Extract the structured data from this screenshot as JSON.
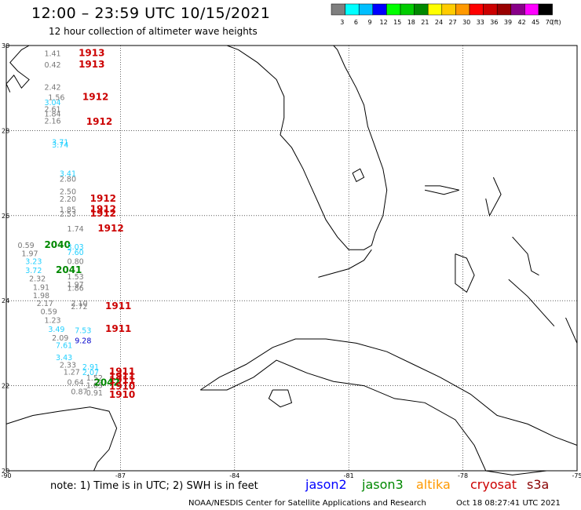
{
  "header": {
    "title": "12:00 – 23:59 UTC 10/15/2021",
    "subtitle": "12 hour collection of altimeter wave heights"
  },
  "legend": {
    "unit": "(ft)",
    "bins": [
      {
        "label": "3",
        "color": "#7f7f7f"
      },
      {
        "label": "6",
        "color": "#00ffff"
      },
      {
        "label": "9",
        "color": "#00bfff"
      },
      {
        "label": "12",
        "color": "#0000ff"
      },
      {
        "label": "15",
        "color": "#00ff00"
      },
      {
        "label": "18",
        "color": "#00cc00"
      },
      {
        "label": "21",
        "color": "#008800"
      },
      {
        "label": "24",
        "color": "#ffff00"
      },
      {
        "label": "27",
        "color": "#ffcc00"
      },
      {
        "label": "30",
        "color": "#ff9900"
      },
      {
        "label": "33",
        "color": "#ff0000"
      },
      {
        "label": "36",
        "color": "#cc0000"
      },
      {
        "label": "39",
        "color": "#990000"
      },
      {
        "label": "42",
        "color": "#880088"
      },
      {
        "label": "45",
        "color": "#ff00ff"
      },
      {
        "label": "70",
        "color": "#000000"
      }
    ]
  },
  "axes": {
    "lat_labels": [
      "30",
      "28",
      "26",
      "24",
      "22",
      "20"
    ],
    "lon_labels": [
      "-90",
      "-87",
      "-84",
      "-81",
      "-78",
      "-75"
    ]
  },
  "map_data": {
    "lon_range": [
      -90,
      -75
    ],
    "lat_range": [
      20,
      30
    ],
    "coastlines": {
      "gulf_coast": [
        [
          -89.4,
          30.0
        ],
        [
          -89.6,
          29.9
        ],
        [
          -89.9,
          29.6
        ],
        [
          -89.7,
          29.4
        ],
        [
          -89.4,
          29.2
        ],
        [
          -89.6,
          29.0
        ],
        [
          -89.8,
          29.3
        ],
        [
          -90.0,
          29.1
        ],
        [
          -89.9,
          28.9
        ]
      ],
      "florida": [
        [
          -84.9,
          30.0
        ],
        [
          -84.2,
          30.0
        ],
        [
          -83.9,
          29.9
        ],
        [
          -83.4,
          29.6
        ],
        [
          -82.9,
          29.2
        ],
        [
          -82.7,
          28.8
        ],
        [
          -82.7,
          28.3
        ],
        [
          -82.8,
          27.9
        ],
        [
          -82.5,
          27.6
        ],
        [
          -82.2,
          27.1
        ],
        [
          -82.0,
          26.7
        ],
        [
          -81.8,
          26.3
        ],
        [
          -81.6,
          25.9
        ],
        [
          -81.3,
          25.5
        ],
        [
          -81.0,
          25.2
        ],
        [
          -80.6,
          25.2
        ],
        [
          -80.4,
          25.3
        ],
        [
          -80.3,
          25.6
        ],
        [
          -80.1,
          26.0
        ],
        [
          -80.0,
          26.6
        ],
        [
          -80.1,
          27.1
        ],
        [
          -80.3,
          27.6
        ],
        [
          -80.5,
          28.1
        ],
        [
          -80.6,
          28.6
        ],
        [
          -80.8,
          29.0
        ],
        [
          -81.1,
          29.5
        ],
        [
          -81.3,
          29.9
        ],
        [
          -81.4,
          30.0
        ]
      ],
      "lake_okeechobee": [
        [
          -80.9,
          27.0
        ],
        [
          -80.7,
          27.1
        ],
        [
          -80.6,
          26.9
        ],
        [
          -80.8,
          26.8
        ],
        [
          -80.9,
          27.0
        ]
      ],
      "keys": [
        [
          -81.8,
          24.55
        ],
        [
          -81.4,
          24.65
        ],
        [
          -81.0,
          24.75
        ],
        [
          -80.6,
          24.95
        ],
        [
          -80.4,
          25.2
        ]
      ],
      "cuba": [
        [
          -84.9,
          21.9
        ],
        [
          -84.4,
          22.2
        ],
        [
          -83.7,
          22.5
        ],
        [
          -83.0,
          22.9
        ],
        [
          -82.4,
          23.1
        ],
        [
          -81.6,
          23.1
        ],
        [
          -80.8,
          23.0
        ],
        [
          -80.0,
          22.8
        ],
        [
          -79.3,
          22.5
        ],
        [
          -78.6,
          22.2
        ],
        [
          -77.8,
          21.8
        ],
        [
          -77.1,
          21.3
        ],
        [
          -76.3,
          21.1
        ],
        [
          -75.6,
          20.8
        ],
        [
          -75.0,
          20.6
        ],
        [
          -75.0,
          20.0
        ],
        [
          -75.8,
          20.0
        ],
        [
          -76.7,
          19.9
        ],
        [
          -77.4,
          20.0
        ],
        [
          -77.7,
          20.6
        ],
        [
          -78.2,
          21.2
        ],
        [
          -79.0,
          21.6
        ],
        [
          -79.8,
          21.7
        ],
        [
          -80.6,
          22.0
        ],
        [
          -81.4,
          22.1
        ],
        [
          -82.1,
          22.3
        ],
        [
          -82.9,
          22.6
        ],
        [
          -83.5,
          22.2
        ],
        [
          -84.2,
          21.9
        ],
        [
          -84.9,
          21.9
        ]
      ],
      "isla_juventud": [
        [
          -83.0,
          21.9
        ],
        [
          -82.6,
          21.9
        ],
        [
          -82.5,
          21.6
        ],
        [
          -82.8,
          21.5
        ],
        [
          -83.1,
          21.7
        ],
        [
          -83.0,
          21.9
        ]
      ],
      "yucatan": [
        [
          -90.0,
          21.1
        ],
        [
          -89.3,
          21.3
        ],
        [
          -88.6,
          21.4
        ],
        [
          -87.8,
          21.5
        ],
        [
          -87.3,
          21.4
        ],
        [
          -87.1,
          21.0
        ],
        [
          -87.3,
          20.5
        ],
        [
          -87.6,
          20.2
        ],
        [
          -87.7,
          20.0
        ]
      ],
      "andros": [
        [
          -78.2,
          25.1
        ],
        [
          -77.9,
          25.0
        ],
        [
          -77.7,
          24.6
        ],
        [
          -77.9,
          24.2
        ],
        [
          -78.2,
          24.4
        ],
        [
          -78.2,
          25.1
        ]
      ],
      "grand_bahama": [
        [
          -79.0,
          26.7
        ],
        [
          -78.6,
          26.7
        ],
        [
          -78.1,
          26.6
        ],
        [
          -78.5,
          26.5
        ],
        [
          -79.0,
          26.6
        ]
      ],
      "abaco": [
        [
          -77.2,
          26.9
        ],
        [
          -77.0,
          26.5
        ],
        [
          -77.3,
          26.0
        ],
        [
          -77.4,
          26.4
        ]
      ],
      "eleuthera": [
        [
          -76.7,
          25.5
        ],
        [
          -76.3,
          25.1
        ],
        [
          -76.2,
          24.7
        ],
        [
          -76.0,
          24.6
        ]
      ],
      "exuma": [
        [
          -76.8,
          24.5
        ],
        [
          -76.3,
          24.1
        ],
        [
          -75.8,
          23.6
        ],
        [
          -75.6,
          23.4
        ]
      ],
      "long_island": [
        [
          -75.3,
          23.6
        ],
        [
          -75.1,
          23.2
        ],
        [
          -75.0,
          23.0
        ]
      ]
    }
  },
  "observations": [
    {
      "lon": -89.0,
      "lat": 29.75,
      "text": "1.41",
      "mission": "altika"
    },
    {
      "lon": -89.0,
      "lat": 29.48,
      "text": "0.42",
      "mission": "altika"
    },
    {
      "lon": -88.1,
      "lat": 29.75,
      "text": "1913",
      "mission": "cryosat"
    },
    {
      "lon": -88.1,
      "lat": 29.48,
      "text": "1913",
      "mission": "cryosat"
    },
    {
      "lon": -89.0,
      "lat": 28.96,
      "text": "2.42",
      "mission": "altika"
    },
    {
      "lon": -88.9,
      "lat": 28.72,
      "text": "1.56",
      "mission": "altika"
    },
    {
      "lon": -89.0,
      "lat": 28.6,
      "text": "3.04",
      "mission": "jason3"
    },
    {
      "lon": -89.0,
      "lat": 28.44,
      "text": "2.61",
      "mission": "altika"
    },
    {
      "lon": -89.0,
      "lat": 28.33,
      "text": "1.84",
      "mission": "altika"
    },
    {
      "lon": -89.0,
      "lat": 28.16,
      "text": "2.16",
      "mission": "altika"
    },
    {
      "lon": -88.0,
      "lat": 28.72,
      "text": "1912",
      "mission": "cryosat"
    },
    {
      "lon": -87.9,
      "lat": 28.14,
      "text": "1912",
      "mission": "cryosat"
    },
    {
      "lon": -88.8,
      "lat": 27.67,
      "text": "3.71",
      "mission": "jason3"
    },
    {
      "lon": -88.8,
      "lat": 27.6,
      "text": "3.74",
      "mission": "jason3"
    },
    {
      "lon": -88.6,
      "lat": 26.93,
      "text": "3.41",
      "mission": "jason3"
    },
    {
      "lon": -88.6,
      "lat": 26.8,
      "text": "2.80",
      "mission": "altika"
    },
    {
      "lon": -88.6,
      "lat": 26.5,
      "text": "2.50",
      "mission": "altika"
    },
    {
      "lon": -88.6,
      "lat": 26.33,
      "text": "2.20",
      "mission": "altika"
    },
    {
      "lon": -88.6,
      "lat": 26.08,
      "text": "1.85",
      "mission": "altika"
    },
    {
      "lon": -88.6,
      "lat": 25.98,
      "text": "2.53",
      "mission": "altika"
    },
    {
      "lon": -87.8,
      "lat": 26.33,
      "text": "1912",
      "mission": "cryosat"
    },
    {
      "lon": -87.8,
      "lat": 26.08,
      "text": "1912",
      "mission": "cryosat"
    },
    {
      "lon": -87.8,
      "lat": 25.98,
      "text": "1912",
      "mission": "cryosat"
    },
    {
      "lon": -88.4,
      "lat": 25.63,
      "text": "1.74",
      "mission": "altika"
    },
    {
      "lon": -87.6,
      "lat": 25.63,
      "text": "1912",
      "mission": "cryosat"
    },
    {
      "lon": -89.7,
      "lat": 25.24,
      "text": "0.59",
      "mission": "altika"
    },
    {
      "lon": -89.0,
      "lat": 25.24,
      "text": "2040",
      "mission": "jason3_ops"
    },
    {
      "lon": -88.4,
      "lat": 25.2,
      "text": "3.03",
      "mission": "jason3"
    },
    {
      "lon": -89.6,
      "lat": 25.05,
      "text": "1.97",
      "mission": "altika"
    },
    {
      "lon": -88.4,
      "lat": 25.07,
      "text": "7.60",
      "mission": "jason3"
    },
    {
      "lon": -89.5,
      "lat": 24.86,
      "text": "3.23",
      "mission": "jason3"
    },
    {
      "lon": -88.4,
      "lat": 24.86,
      "text": "0.80",
      "mission": "altika"
    },
    {
      "lon": -89.5,
      "lat": 24.65,
      "text": "3.72",
      "mission": "jason3"
    },
    {
      "lon": -88.7,
      "lat": 24.65,
      "text": "2041",
      "mission": "jason3_ops"
    },
    {
      "lon": -89.4,
      "lat": 24.46,
      "text": "2.32",
      "mission": "altika"
    },
    {
      "lon": -88.4,
      "lat": 24.5,
      "text": "1.53",
      "mission": "altika"
    },
    {
      "lon": -89.3,
      "lat": 24.25,
      "text": "1.91",
      "mission": "altika"
    },
    {
      "lon": -88.4,
      "lat": 24.32,
      "text": "1.97",
      "mission": "altika"
    },
    {
      "lon": -88.4,
      "lat": 24.23,
      "text": "1.86",
      "mission": "altika"
    },
    {
      "lon": -89.3,
      "lat": 24.06,
      "text": "1.98",
      "mission": "altika"
    },
    {
      "lon": -89.2,
      "lat": 23.87,
      "text": "2.17",
      "mission": "altika"
    },
    {
      "lon": -88.3,
      "lat": 23.87,
      "text": "2.10",
      "mission": "altika"
    },
    {
      "lon": -88.3,
      "lat": 23.8,
      "text": "2.72",
      "mission": "altika"
    },
    {
      "lon": -87.4,
      "lat": 23.8,
      "text": "1911",
      "mission": "cryosat"
    },
    {
      "lon": -89.1,
      "lat": 23.68,
      "text": "0.59",
      "mission": "altika"
    },
    {
      "lon": -89.0,
      "lat": 23.48,
      "text": "1.23",
      "mission": "altika"
    },
    {
      "lon": -88.9,
      "lat": 23.27,
      "text": "3.49",
      "mission": "jason3"
    },
    {
      "lon": -88.2,
      "lat": 23.24,
      "text": "7.53",
      "mission": "jason3"
    },
    {
      "lon": -87.4,
      "lat": 23.27,
      "text": "1911",
      "mission": "cryosat"
    },
    {
      "lon": -88.8,
      "lat": 23.06,
      "text": "2.09",
      "mission": "altika"
    },
    {
      "lon": -88.2,
      "lat": 23.0,
      "text": "9.28",
      "mission": "jason2"
    },
    {
      "lon": -88.7,
      "lat": 22.89,
      "text": "7.61",
      "mission": "jason3"
    },
    {
      "lon": -88.7,
      "lat": 22.6,
      "text": "3.43",
      "mission": "jason3"
    },
    {
      "lon": -88.6,
      "lat": 22.43,
      "text": "2.33",
      "mission": "altika"
    },
    {
      "lon": -88.0,
      "lat": 22.38,
      "text": "2.91",
      "mission": "jason3"
    },
    {
      "lon": -88.5,
      "lat": 22.26,
      "text": "1.27",
      "mission": "altika"
    },
    {
      "lon": -88.0,
      "lat": 22.25,
      "text": "2.07",
      "mission": "jason3"
    },
    {
      "lon": -87.9,
      "lat": 22.12,
      "text": "1.52",
      "mission": "altika"
    },
    {
      "lon": -88.4,
      "lat": 22.02,
      "text": "0.64",
      "mission": "altika"
    },
    {
      "lon": -87.9,
      "lat": 21.95,
      "text": "1.05",
      "mission": "altika"
    },
    {
      "lon": -88.3,
      "lat": 21.8,
      "text": "0.87",
      "mission": "altika"
    },
    {
      "lon": -87.9,
      "lat": 21.77,
      "text": "0.91",
      "mission": "altika"
    },
    {
      "lon": -87.3,
      "lat": 22.26,
      "text": "1911",
      "mission": "cryosat"
    },
    {
      "lon": -87.3,
      "lat": 22.15,
      "text": "1911",
      "mission": "cryosat"
    },
    {
      "lon": -87.3,
      "lat": 22.06,
      "text": "1911",
      "mission": "cryosat"
    },
    {
      "lon": -87.7,
      "lat": 22.0,
      "text": "2042",
      "mission": "jason3_ops"
    },
    {
      "lon": -87.3,
      "lat": 21.91,
      "text": "1910",
      "mission": "cryosat"
    },
    {
      "lon": -87.3,
      "lat": 21.72,
      "text": "1910",
      "mission": "cryosat"
    }
  ],
  "mission_colors": {
    "altika": "#777777",
    "jason3": "#22d0ff",
    "jason2": "#0000cc",
    "jason3_ops": "#008800",
    "cryosat": "#cc0000"
  },
  "footer": {
    "note": "note:  1) Time is in UTC;  2) SWH is in feet",
    "credit": "NOAA/NESDIS Center for Satellite Applications and Research",
    "timestamp": "Oct 18 08:27:41 UTC 2021",
    "satellites": [
      {
        "name": "jason2",
        "color": "#0000ff"
      },
      {
        "name": "jason3",
        "color": "#008800"
      },
      {
        "name": "altika",
        "color": "#ff9900"
      },
      {
        "name": "cryosat",
        "color": "#cc0000"
      },
      {
        "name": "s3a",
        "color": "#880000"
      }
    ]
  }
}
